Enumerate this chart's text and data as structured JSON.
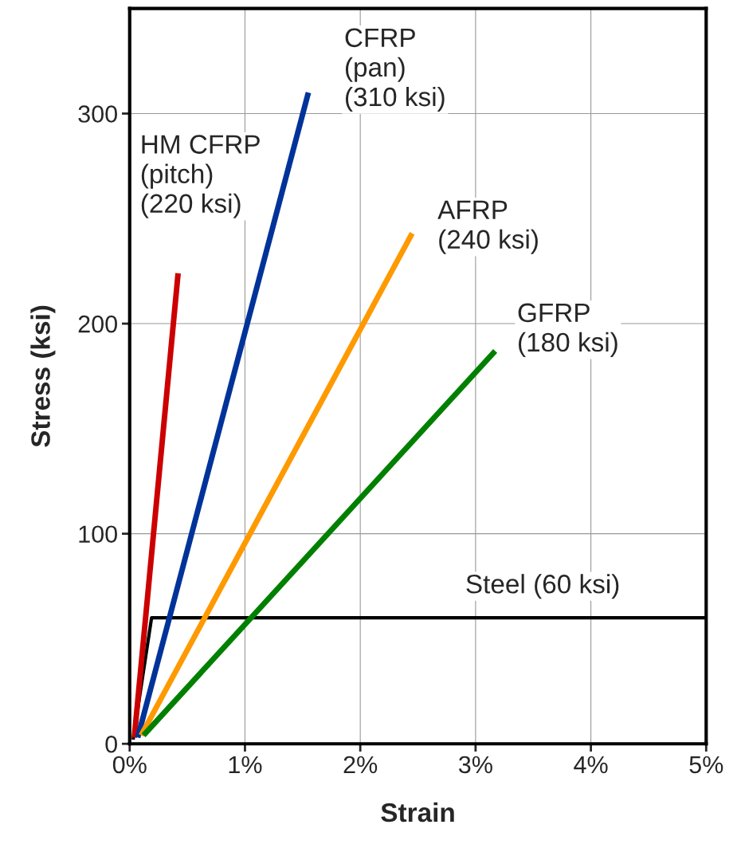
{
  "chart_data": {
    "type": "line",
    "xlabel": "Strain",
    "ylabel": "Stress (ksi)",
    "xlim": [
      0,
      5
    ],
    "ylim": [
      0,
      350
    ],
    "xticks": [
      {
        "value": 0,
        "label": "0%"
      },
      {
        "value": 1,
        "label": "1%"
      },
      {
        "value": 2,
        "label": "2%"
      },
      {
        "value": 3,
        "label": "3%"
      },
      {
        "value": 4,
        "label": "4%"
      },
      {
        "value": 5,
        "label": "5%"
      }
    ],
    "yticks": [
      0,
      100,
      200,
      300
    ],
    "grid": true,
    "legend": false,
    "marker": "none",
    "line_style": "solid",
    "series": [
      {
        "color": "#000000",
        "x": [
          0.03,
          0.19,
          5
        ],
        "values": [
          2,
          60,
          60
        ]
      },
      {
        "color": "#cc0000",
        "x": [
          0.04,
          0.42
        ],
        "values": [
          3,
          224
        ]
      },
      {
        "color": "#003399",
        "x": [
          0.07,
          1.55
        ],
        "values": [
          3,
          310
        ]
      },
      {
        "color": "#ff9900",
        "x": [
          0.1,
          2.45
        ],
        "values": [
          4,
          243
        ]
      },
      {
        "color": "#008000",
        "x": [
          0.12,
          3.17
        ],
        "values": [
          4,
          187
        ]
      }
    ],
    "annotations": [
      "HM CFRP\n(pitch)\n(220 ksi)",
      "CFRP\n(pan)\n(310 ksi)",
      "AFRP\n(240 ksi)",
      "GFRP\n(180 ksi)",
      "Steel (60 ksi)"
    ]
  }
}
